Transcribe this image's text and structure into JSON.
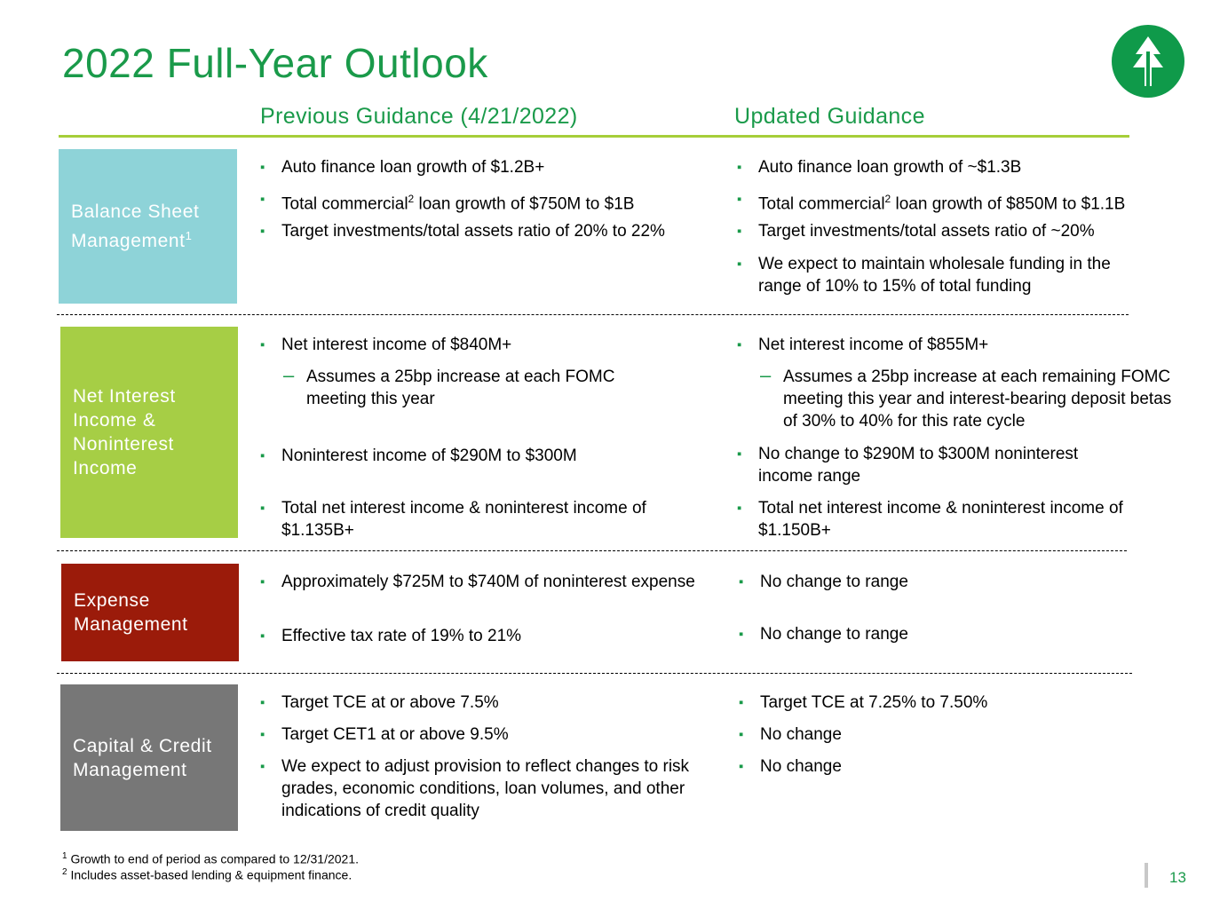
{
  "title": "2022 Full-Year Outlook",
  "headers": {
    "previous": "Previous Guidance (4/21/2022)",
    "updated": "Updated Guidance"
  },
  "sections": {
    "balance": {
      "label": "Balance Sheet Management",
      "label_sup": "1",
      "prev": [
        "Auto finance loan growth of $1.2B+",
        {
          "pre": "Total commercial",
          "sup": "2",
          "post": " loan growth of $750M to $1B"
        },
        "Target investments/total assets ratio of 20% to 22%"
      ],
      "upd": [
        "Auto finance loan growth of ~$1.3B",
        {
          "pre": "Total commercial",
          "sup": "2",
          "post": " loan growth of $850M to $1.1B"
        },
        "Target investments/total assets ratio of ~20%",
        "We expect to maintain wholesale funding in the range of 10% to 15% of total funding"
      ]
    },
    "nii": {
      "label": "Net Interest Income & Noninterest Income",
      "prev": [
        "Net interest income of $840M+",
        "Assumes a 25bp increase at each FOMC meeting this year",
        "Noninterest income of $290M to $300M",
        "Total net interest income & noninterest income of $1.135B+"
      ],
      "upd": [
        "Net interest income of $855M+",
        "Assumes a 25bp increase at each remaining FOMC meeting this year and interest-bearing deposit betas of 30% to 40% for this rate cycle",
        "No change to $290M to $300M noninterest income range",
        "Total net interest income & noninterest income of $1.150B+"
      ]
    },
    "expense": {
      "label": "Expense Management",
      "prev": [
        "Approximately $725M to $740M of noninterest expense",
        "Effective tax rate of 19% to 21%"
      ],
      "upd": [
        "No change to range",
        "No change to range"
      ]
    },
    "capital": {
      "label": "Capital & Credit Management",
      "prev": [
        "Target TCE at or above 7.5%",
        "Target CET1 at or above 9.5%",
        "We expect to adjust provision to reflect changes to risk grades, economic conditions, loan volumes, and other indications of credit quality"
      ],
      "upd": [
        "Target TCE at 7.25% to 7.50%",
        "No change",
        "No change"
      ]
    }
  },
  "footnotes": [
    {
      "sup": "1",
      "text": " Growth to end of period as compared to 12/31/2021."
    },
    {
      "sup": "2",
      "text": " Includes asset-based lending & equipment finance."
    }
  ],
  "page_number": "13",
  "colors": {
    "green": "#1a9a4a",
    "lime": "#a6ce39",
    "teal": "#8ed3d8",
    "red": "#9b1b0a",
    "gray": "#777777"
  }
}
